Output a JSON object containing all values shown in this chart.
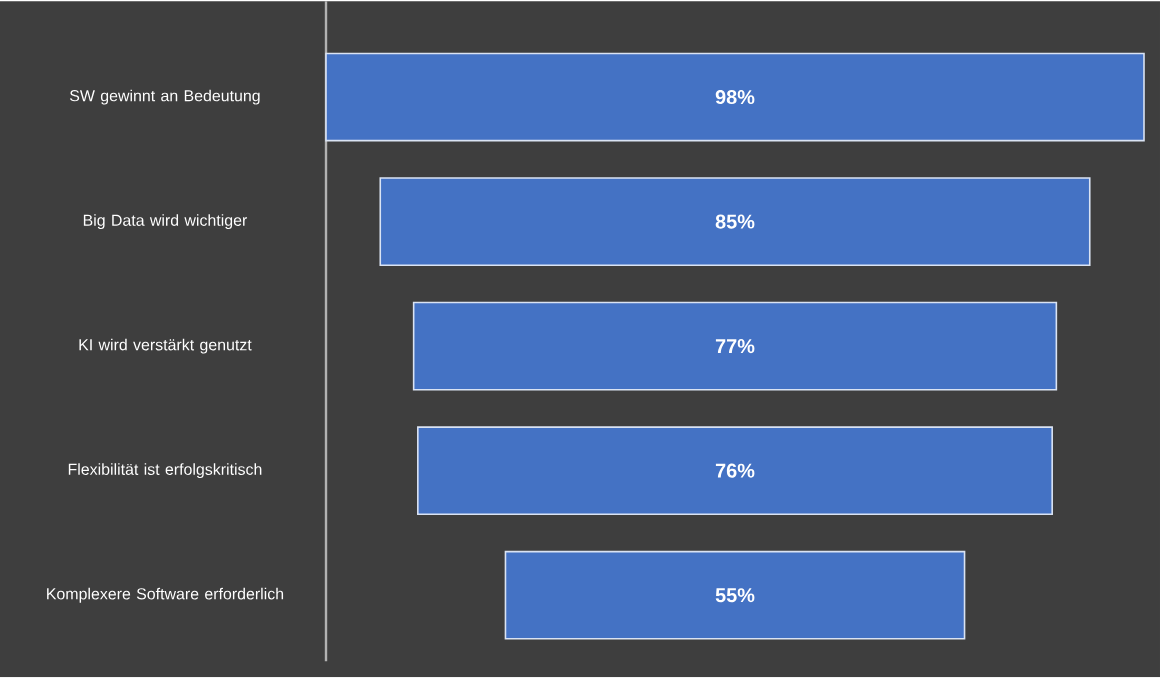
{
  "chart_data": {
    "type": "other",
    "categories": [
      "SW gewinnt an Bedeutung",
      "Big Data wird wichtiger",
      "KI wird verstärkt genutzt",
      "Flexibilität ist erfolgskritisch",
      "Komplexere Software erforderlich"
    ],
    "values": [
      98,
      85,
      77,
      76,
      55
    ],
    "value_labels": [
      "98%",
      "85%",
      "77%",
      "76%",
      "55%"
    ],
    "color": "#4472c4"
  }
}
